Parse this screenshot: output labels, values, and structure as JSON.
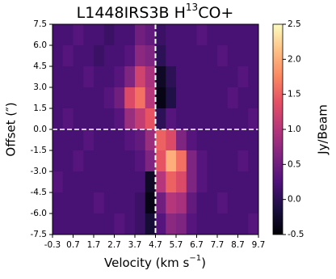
{
  "chart_data": {
    "type": "heatmap",
    "title": "L1448IRS3B H",
    "title_sup": "13",
    "title_end": "CO+",
    "xlabel": "Velocity (km s",
    "xlabel_sup": "−1",
    "xlabel_end": ")",
    "ylabel": "Offset (″)",
    "colorbar_label": "Jy/Beam",
    "colormap": "magma",
    "xlim": [
      -0.3,
      9.7
    ],
    "ylim": [
      -7.5,
      7.5
    ],
    "zlim": [
      -0.5,
      2.5
    ],
    "xticks": [
      -0.3,
      0.7,
      1.7,
      2.7,
      3.7,
      4.7,
      5.7,
      6.7,
      7.7,
      8.7,
      9.7
    ],
    "yticks": [
      7.5,
      {
        "value": 6,
        "label": "6.0"
      },
      4.5,
      {
        "value": 3,
        "label": "3.0"
      },
      1.5,
      {
        "value": 0,
        "label": "0.0"
      },
      -1.5,
      {
        "value": -3,
        "label": "-3.0"
      },
      -4.5,
      {
        "value": -6,
        "label": "-6.0"
      },
      -7.5
    ],
    "zticks": [
      2.5,
      {
        "value": 2,
        "label": "2.0"
      },
      1.5,
      {
        "value": 1,
        "label": "1.0"
      },
      0.5,
      {
        "value": 0,
        "label": "0.0"
      },
      -0.5
    ],
    "reference_lines": {
      "x": 4.7,
      "y": 0
    },
    "z": [
      [
        0.2,
        0.2,
        0.3,
        0.2,
        0.2,
        0.1,
        0.2,
        0.2,
        0.5,
        0.4,
        0.1,
        0.2,
        0.2,
        0.2,
        0.3,
        0.2,
        0.2,
        0.2,
        0.2,
        0.2
      ],
      [
        0.2,
        0.3,
        0.2,
        0.2,
        0.1,
        0.2,
        0.2,
        0.3,
        0.7,
        0.6,
        0.0,
        0.2,
        0.2,
        0.2,
        0.2,
        0.2,
        0.3,
        0.2,
        0.2,
        0.2
      ],
      [
        0.2,
        0.2,
        0.2,
        0.3,
        0.2,
        0.2,
        0.3,
        0.6,
        1.2,
        0.9,
        -0.3,
        0.0,
        0.2,
        0.2,
        0.2,
        0.2,
        0.2,
        0.2,
        0.3,
        0.2
      ],
      [
        0.2,
        0.2,
        0.2,
        0.2,
        0.2,
        0.3,
        0.5,
        1.3,
        1.6,
        1.0,
        -0.4,
        -0.1,
        0.2,
        0.2,
        0.2,
        0.2,
        0.2,
        0.3,
        0.2,
        0.2
      ],
      [
        0.2,
        0.3,
        0.2,
        0.2,
        0.2,
        0.2,
        0.3,
        0.8,
        1.1,
        1.4,
        0.0,
        0.3,
        0.2,
        0.2,
        0.2,
        0.2,
        0.2,
        0.2,
        0.2,
        0.3
      ],
      [
        0.2,
        0.2,
        0.2,
        0.3,
        0.2,
        0.2,
        0.2,
        0.3,
        0.4,
        0.8,
        1.5,
        1.3,
        0.6,
        0.3,
        0.2,
        0.2,
        0.2,
        0.2,
        0.2,
        0.2
      ],
      [
        0.2,
        0.2,
        0.3,
        0.2,
        0.2,
        0.2,
        0.2,
        0.2,
        0.3,
        0.6,
        1.4,
        2.0,
        1.6,
        0.6,
        0.3,
        0.2,
        0.2,
        0.2,
        0.3,
        0.2
      ],
      [
        0.3,
        0.2,
        0.2,
        0.2,
        0.2,
        0.2,
        0.2,
        0.2,
        0.2,
        -0.3,
        1.0,
        1.5,
        1.3,
        0.6,
        0.3,
        0.2,
        0.2,
        0.2,
        0.2,
        0.2
      ],
      [
        0.2,
        0.2,
        0.2,
        0.2,
        0.3,
        0.2,
        0.2,
        0.2,
        0.1,
        -0.4,
        0.5,
        1.0,
        0.9,
        0.4,
        0.2,
        0.2,
        0.3,
        0.2,
        0.2,
        0.2
      ],
      [
        0.2,
        0.2,
        0.2,
        0.2,
        0.2,
        0.2,
        0.3,
        0.2,
        0.1,
        -0.2,
        0.3,
        0.7,
        0.6,
        0.3,
        0.2,
        0.2,
        0.2,
        0.2,
        0.2,
        0.3
      ]
    ]
  }
}
